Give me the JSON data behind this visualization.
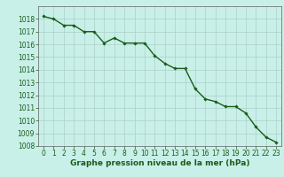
{
  "x": [
    0,
    1,
    2,
    3,
    4,
    5,
    6,
    7,
    8,
    9,
    10,
    11,
    12,
    13,
    14,
    15,
    16,
    17,
    18,
    19,
    20,
    21,
    22,
    23
  ],
  "y": [
    1018.2,
    1018.0,
    1017.5,
    1017.5,
    1017.0,
    1017.0,
    1016.1,
    1016.5,
    1016.1,
    1016.1,
    1016.1,
    1015.1,
    1014.5,
    1014.1,
    1014.1,
    1012.5,
    1011.7,
    1011.5,
    1011.1,
    1011.1,
    1010.6,
    1009.5,
    1008.7,
    1008.3
  ],
  "ylim": [
    1008,
    1019
  ],
  "xlim": [
    -0.5,
    23.5
  ],
  "yticks": [
    1008,
    1009,
    1010,
    1011,
    1012,
    1013,
    1014,
    1015,
    1016,
    1017,
    1018
  ],
  "xticks": [
    0,
    1,
    2,
    3,
    4,
    5,
    6,
    7,
    8,
    9,
    10,
    11,
    12,
    13,
    14,
    15,
    16,
    17,
    18,
    19,
    20,
    21,
    22,
    23
  ],
  "line_color": "#1a5c1a",
  "marker": "D",
  "marker_size": 1.8,
  "bg_color": "#c8f0e8",
  "grid_color": "#aacfc8",
  "xlabel": "Graphe pression niveau de la mer (hPa)",
  "xlabel_fontsize": 6.5,
  "tick_fontsize": 5.5,
  "line_width": 1.0
}
